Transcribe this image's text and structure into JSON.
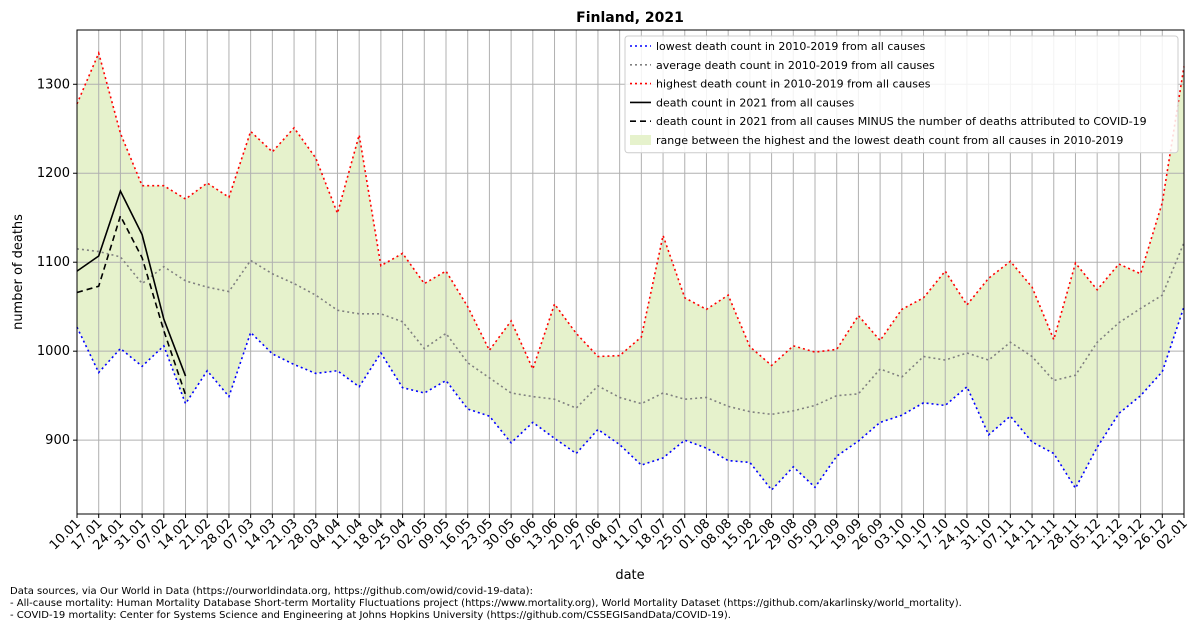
{
  "chart_data": {
    "type": "line",
    "title": "Finland, 2021",
    "xlabel": "date",
    "ylabel": "number of deaths",
    "categories": [
      "10.01",
      "17.01",
      "24.01",
      "31.01",
      "07.02",
      "14.02",
      "21.02",
      "28.02",
      "07.03",
      "14.03",
      "21.03",
      "28.03",
      "04.04",
      "11.04",
      "18.04",
      "25.04",
      "02.05",
      "09.05",
      "16.05",
      "23.05",
      "30.05",
      "06.06",
      "13.06",
      "20.06",
      "27.06",
      "04.07",
      "11.07",
      "18.07",
      "25.07",
      "01.08",
      "08.08",
      "15.08",
      "22.08",
      "29.08",
      "05.09",
      "12.09",
      "19.09",
      "26.09",
      "03.10",
      "10.10",
      "17.10",
      "24.10",
      "31.10",
      "07.11",
      "14.11",
      "21.11",
      "28.11",
      "05.12",
      "12.12",
      "19.12",
      "26.12",
      "02.01"
    ],
    "series": [
      {
        "name": "lowest death count in 2010-2019 from all causes",
        "color": "#0000ff",
        "linestyle": "dotted",
        "values": [
          1027,
          976,
          1003,
          983,
          1006,
          941,
          978,
          949,
          1021,
          997,
          985,
          975,
          978,
          960,
          998,
          959,
          953,
          967,
          935,
          927,
          897,
          920,
          902,
          885,
          912,
          895,
          872,
          880,
          900,
          891,
          877,
          875,
          844,
          870,
          847,
          882,
          899,
          920,
          928,
          942,
          939,
          960,
          906,
          927,
          898,
          885,
          846,
          892,
          930,
          950,
          977,
          1050
        ]
      },
      {
        "name": "average death count in 2010-2019 from all causes",
        "color": "#808080",
        "linestyle": "dotted",
        "values": [
          1115,
          1112,
          1106,
          1076,
          1095,
          1079,
          1072,
          1067,
          1102,
          1087,
          1076,
          1063,
          1046,
          1042,
          1042,
          1033,
          1003,
          1020,
          987,
          970,
          953,
          949,
          946,
          936,
          961,
          948,
          941,
          953,
          946,
          948,
          938,
          932,
          929,
          933,
          939,
          950,
          952,
          980,
          971,
          994,
          990,
          998,
          990,
          1010,
          994,
          967,
          973,
          1010,
          1032,
          1048,
          1063,
          1122
        ]
      },
      {
        "name": "highest death count in 2010-2019 from all causes",
        "color": "#ff0000",
        "linestyle": "dotted",
        "values": [
          1278,
          1335,
          1245,
          1186,
          1186,
          1171,
          1189,
          1173,
          1247,
          1224,
          1251,
          1217,
          1155,
          1243,
          1096,
          1110,
          1076,
          1090,
          1050,
          1001,
          1034,
          980,
          1053,
          1020,
          994,
          995,
          1016,
          1130,
          1060,
          1047,
          1063,
          1005,
          984,
          1006,
          999,
          1002,
          1040,
          1012,
          1047,
          1060,
          1090,
          1052,
          1082,
          1101,
          1072,
          1013,
          1099,
          1069,
          1098,
          1087,
          1167,
          1320
        ]
      },
      {
        "name": "death count in 2021 from all causes",
        "color": "#000000",
        "linestyle": "solid",
        "values": [
          1090,
          1107,
          1180,
          1131,
          1036,
          972,
          null,
          null,
          null,
          null,
          null,
          null,
          null,
          null,
          null,
          null,
          null,
          null,
          null,
          null,
          null,
          null,
          null,
          null,
          null,
          null,
          null,
          null,
          null,
          null,
          null,
          null,
          null,
          null,
          null,
          null,
          null,
          null,
          null,
          null,
          null,
          null,
          null,
          null,
          null,
          null,
          null,
          null,
          null,
          null,
          null,
          null
        ]
      },
      {
        "name": "death count in 2021 from all causes MINUS the number of deaths attributed to COVID-19",
        "color": "#000000",
        "linestyle": "dashed",
        "values": [
          1066,
          1073,
          1152,
          1105,
          1023,
          951,
          null,
          null,
          null,
          null,
          null,
          null,
          null,
          null,
          null,
          null,
          null,
          null,
          null,
          null,
          null,
          null,
          null,
          null,
          null,
          null,
          null,
          null,
          null,
          null,
          null,
          null,
          null,
          null,
          null,
          null,
          null,
          null,
          null,
          null,
          null,
          null,
          null,
          null,
          null,
          null,
          null,
          null,
          null,
          null,
          null,
          null
        ]
      }
    ],
    "fill": {
      "name": "range between the highest and the lowest death count from all causes in 2010-2019",
      "color": "#e6f2cc",
      "upper": 2,
      "lower": 0
    },
    "ylim": [
      817,
      1361
    ],
    "yticks": [
      900,
      1000,
      1100,
      1200,
      1300
    ],
    "grid": true,
    "legend": "upper right",
    "notes": [
      "Data sources, via Our World in Data (https://ourworldindata.org, https://github.com/owid/covid-19-data):",
      "- All-cause mortality: Human Mortality Database Short-term Mortality Fluctuations project (https://www.mortality.org), World Mortality Dataset (https://github.com/akarlinsky/world_mortality).",
      "- COVID-19 mortality: Center for Systems Science and Engineering at Johns Hopkins University (https://github.com/CSSEGISandData/COVID-19)."
    ]
  }
}
